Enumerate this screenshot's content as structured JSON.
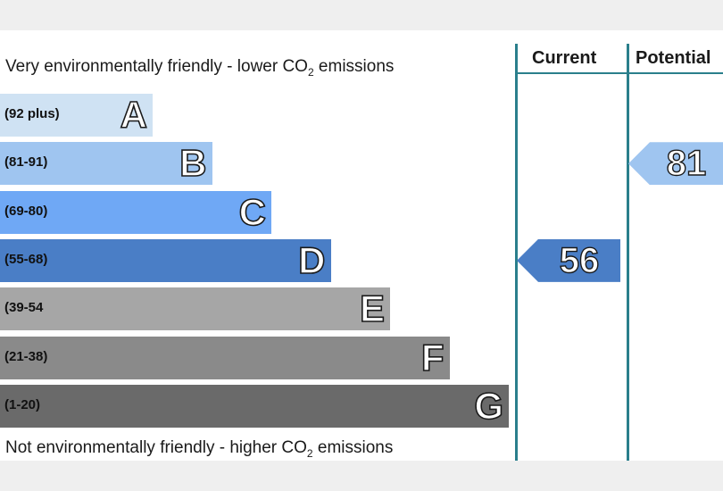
{
  "chart_data": {
    "type": "bar",
    "top_caption": {
      "before": "Very environmentally friendly - lower CO",
      "sub": "2",
      "after": " emissions"
    },
    "bottom_caption": {
      "before": "Not environmentally friendly - higher CO",
      "sub": "2",
      "after": " emissions"
    },
    "bands": [
      {
        "letter": "A",
        "range": "(92 plus)",
        "color": "#cfe2f3"
      },
      {
        "letter": "B",
        "range": "(81-91)",
        "color": "#9fc5f0"
      },
      {
        "letter": "C",
        "range": "(69-80)",
        "color": "#6fa8f5"
      },
      {
        "letter": "D",
        "range": "(55-68)",
        "color": "#4a7ec6"
      },
      {
        "letter": "E",
        "range": "(39-54",
        "color": "#a6a6a6"
      },
      {
        "letter": "F",
        "range": "(21-38)",
        "color": "#8a8a8a"
      },
      {
        "letter": "G",
        "range": "(1-20)",
        "color": "#6a6a6a"
      }
    ],
    "columns": [
      {
        "label": "Current",
        "value": "56",
        "band": "D",
        "color": "#4a7ec6"
      },
      {
        "label": "Potential",
        "value": "81",
        "band": "B",
        "color": "#9fc5f0"
      }
    ]
  }
}
